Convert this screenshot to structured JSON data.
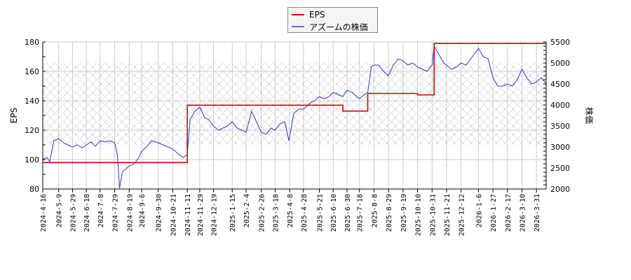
{
  "chart_data": {
    "type": "line",
    "title": "",
    "legend": {
      "position": "top-center",
      "entries": [
        {
          "label": "EPS",
          "color": "#dd0000"
        },
        {
          "label": "アズームの株価",
          "color": "#3333dd"
        }
      ]
    },
    "x_axis": {
      "label": "",
      "tick_labels": [
        "2024-4-16",
        "2024-5-9",
        "2024-5-29",
        "2024-6-18",
        "2024-7-8",
        "2024-7-29",
        "2024-8-19",
        "2024-9-6",
        "2024-9-30",
        "2024-10-21",
        "2024-11-11",
        "2024-11-29",
        "2024-12-19",
        "2025-1-15",
        "2025-2-4",
        "2025-2-26",
        "2025-3-18",
        "2025-4-8",
        "2025-4-28",
        "2025-5-21",
        "2025-6-10",
        "2025-6-30",
        "2025-7-18",
        "2025-8-8",
        "2025-8-29",
        "2025-9-19",
        "2025-10-10",
        "2025-10-31",
        "2025-11-21",
        "2025-12-12",
        "2026-1-6",
        "2026-1-27",
        "2026-2-17",
        "2026-3-10",
        "2026-3-31"
      ]
    },
    "y_axis_left": {
      "label": "EPS",
      "ylim": [
        80,
        180
      ],
      "ticks": [
        80,
        100,
        120,
        140,
        160,
        180
      ]
    },
    "y_axis_right": {
      "label": "株価",
      "ylim": [
        2000,
        5500
      ],
      "ticks": [
        2000,
        2500,
        3000,
        3500,
        4000,
        4500,
        5000,
        5500
      ]
    },
    "grid": true,
    "shaded_band": {
      "pattern": "crosshatch",
      "y_right_range": [
        3050,
        5000
      ],
      "color": "#aaaaaa"
    },
    "series": [
      {
        "name": "EPS",
        "axis": "left",
        "color": "#dd0000",
        "steps": [
          {
            "from": "2024-4-16",
            "to": "2024-11-11",
            "value": 98
          },
          {
            "from": "2024-11-11",
            "to": "2025-6-24",
            "value": 137
          },
          {
            "from": "2025-6-24",
            "to": "2025-7-30",
            "value": 133
          },
          {
            "from": "2025-7-30",
            "to": "2025-10-10",
            "value": 145
          },
          {
            "from": "2025-10-10",
            "to": "2025-11-3",
            "value": 144
          },
          {
            "from": "2025-11-3",
            "to": "2026-4-14",
            "value": 179
          }
        ]
      },
      {
        "name": "アズームの株価",
        "axis": "right",
        "color": "#3333dd",
        "points": [
          [
            "2024-4-16",
            2700
          ],
          [
            "2024-4-22",
            2750
          ],
          [
            "2024-4-26",
            2650
          ],
          [
            "2024-5-2",
            3150
          ],
          [
            "2024-5-9",
            3200
          ],
          [
            "2024-5-16",
            3100
          ],
          [
            "2024-5-22",
            3050
          ],
          [
            "2024-5-29",
            3000
          ],
          [
            "2024-6-5",
            3050
          ],
          [
            "2024-6-12",
            2980
          ],
          [
            "2024-6-18",
            3050
          ],
          [
            "2024-6-25",
            3120
          ],
          [
            "2024-7-1",
            3020
          ],
          [
            "2024-7-8",
            3150
          ],
          [
            "2024-7-15",
            3120
          ],
          [
            "2024-7-22",
            3150
          ],
          [
            "2024-7-29",
            3100
          ],
          [
            "2024-8-2",
            2800
          ],
          [
            "2024-8-5",
            2020
          ],
          [
            "2024-8-9",
            2400
          ],
          [
            "2024-8-19",
            2550
          ],
          [
            "2024-8-26",
            2600
          ],
          [
            "2024-9-2",
            2750
          ],
          [
            "2024-9-6",
            2900
          ],
          [
            "2024-9-13",
            3000
          ],
          [
            "2024-9-20",
            3150
          ],
          [
            "2024-9-30",
            3100
          ],
          [
            "2024-10-7",
            3050
          ],
          [
            "2024-10-14",
            3000
          ],
          [
            "2024-10-21",
            2950
          ],
          [
            "2024-10-28",
            2850
          ],
          [
            "2024-11-5",
            2750
          ],
          [
            "2024-11-11",
            2820
          ],
          [
            "2024-11-15",
            3650
          ],
          [
            "2024-11-22",
            3850
          ],
          [
            "2024-11-29",
            3950
          ],
          [
            "2024-12-6",
            3700
          ],
          [
            "2024-12-12",
            3650
          ],
          [
            "2024-12-19",
            3500
          ],
          [
            "2024-12-26",
            3400
          ],
          [
            "2025-1-8",
            3500
          ],
          [
            "2025-1-15",
            3600
          ],
          [
            "2025-1-22",
            3450
          ],
          [
            "2025-1-29",
            3400
          ],
          [
            "2025-2-4",
            3350
          ],
          [
            "2025-2-12",
            3850
          ],
          [
            "2025-2-19",
            3600
          ],
          [
            "2025-2-26",
            3350
          ],
          [
            "2025-3-5",
            3300
          ],
          [
            "2025-3-12",
            3450
          ],
          [
            "2025-3-18",
            3400
          ],
          [
            "2025-3-25",
            3550
          ],
          [
            "2025-4-1",
            3600
          ],
          [
            "2025-4-7",
            3150
          ],
          [
            "2025-4-14",
            3800
          ],
          [
            "2025-4-21",
            3900
          ],
          [
            "2025-4-28",
            3900
          ],
          [
            "2025-5-8",
            4050
          ],
          [
            "2025-5-14",
            4100
          ],
          [
            "2025-5-21",
            4200
          ],
          [
            "2025-5-28",
            4150
          ],
          [
            "2025-6-4",
            4200
          ],
          [
            "2025-6-10",
            4300
          ],
          [
            "2025-6-17",
            4250
          ],
          [
            "2025-6-24",
            4200
          ],
          [
            "2025-6-30",
            4350
          ],
          [
            "2025-7-7",
            4300
          ],
          [
            "2025-7-14",
            4200
          ],
          [
            "2025-7-18",
            4150
          ],
          [
            "2025-7-25",
            4250
          ],
          [
            "2025-7-30",
            4300
          ],
          [
            "2025-8-4",
            4900
          ],
          [
            "2025-8-8",
            4950
          ],
          [
            "2025-8-15",
            4950
          ],
          [
            "2025-8-22",
            4800
          ],
          [
            "2025-8-29",
            4700
          ],
          [
            "2025-9-5",
            4950
          ],
          [
            "2025-9-12",
            5100
          ],
          [
            "2025-9-19",
            5050
          ],
          [
            "2025-9-26",
            4950
          ],
          [
            "2025-10-3",
            5000
          ],
          [
            "2025-10-10",
            4900
          ],
          [
            "2025-10-17",
            4850
          ],
          [
            "2025-10-24",
            4800
          ],
          [
            "2025-10-31",
            4950
          ],
          [
            "2025-11-3",
            5400
          ],
          [
            "2025-11-10",
            5200
          ],
          [
            "2025-11-17",
            5000
          ],
          [
            "2025-11-21",
            4950
          ],
          [
            "2025-11-28",
            4850
          ],
          [
            "2025-12-5",
            4900
          ],
          [
            "2025-12-12",
            5000
          ],
          [
            "2025-12-19",
            4950
          ],
          [
            "2025-12-26",
            5100
          ],
          [
            "2026-1-6",
            5350
          ],
          [
            "2026-1-13",
            5150
          ],
          [
            "2026-1-20",
            5100
          ],
          [
            "2026-1-27",
            4650
          ],
          [
            "2026-2-3",
            4450
          ],
          [
            "2026-2-10",
            4450
          ],
          [
            "2026-2-17",
            4500
          ],
          [
            "2026-2-24",
            4450
          ],
          [
            "2026-3-3",
            4600
          ],
          [
            "2026-3-10",
            4850
          ],
          [
            "2026-3-17",
            4650
          ],
          [
            "2026-3-24",
            4500
          ],
          [
            "2026-3-31",
            4550
          ],
          [
            "2026-4-7",
            4650
          ],
          [
            "2026-4-14",
            4500
          ]
        ]
      }
    ]
  }
}
